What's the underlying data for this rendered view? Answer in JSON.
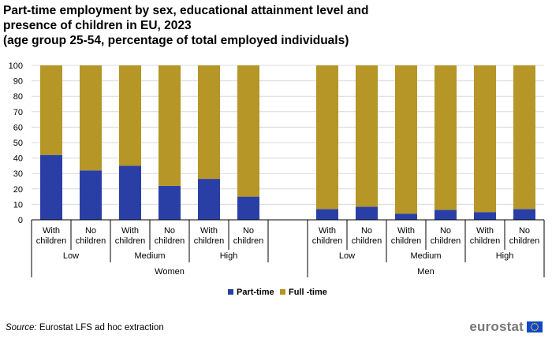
{
  "title_lines": [
    "Part-time employment by sex, educational attainment level and",
    "presence of children in EU, 2023",
    "(age group 25-54, percentage of total employed individuals)"
  ],
  "source": {
    "label": "Source:",
    "text": " Eurostat LFS ad hoc extraction"
  },
  "logo": {
    "text": "eurostat",
    "icon": "eu-flag-icon"
  },
  "colors": {
    "part_time": "#2a3fa6",
    "full_time": "#b59626",
    "grid": "#d9d9d9",
    "axis": "#000000"
  },
  "chart_data": {
    "type": "bar",
    "stacked": true,
    "ylim": [
      0,
      100
    ],
    "yticks": [
      0,
      10,
      20,
      30,
      40,
      50,
      60,
      70,
      80,
      90,
      100
    ],
    "grid": true,
    "legend_position": "bottom",
    "series": [
      {
        "name": "Part-time",
        "color": "#2a3fa6"
      },
      {
        "name": "Full -time",
        "color": "#b59626"
      }
    ],
    "slots": [
      {
        "label": [
          "With",
          "children"
        ],
        "part": 42,
        "full": 58
      },
      {
        "label": [
          "No",
          "children"
        ],
        "part": 32,
        "full": 68
      },
      {
        "label": [
          "With",
          "children"
        ],
        "part": 35,
        "full": 65
      },
      {
        "label": [
          "No",
          "children"
        ],
        "part": 22,
        "full": 78
      },
      {
        "label": [
          "With",
          "children"
        ],
        "part": 26.5,
        "full": 73.5
      },
      {
        "label": [
          "No",
          "children"
        ],
        "part": 15,
        "full": 85
      },
      null,
      {
        "label": [
          "With",
          "children"
        ],
        "part": 7,
        "full": 93
      },
      {
        "label": [
          "No",
          "children"
        ],
        "part": 8.5,
        "full": 91.5
      },
      {
        "label": [
          "With",
          "children"
        ],
        "part": 4,
        "full": 96
      },
      {
        "label": [
          "No",
          "children"
        ],
        "part": 6.5,
        "full": 93.5
      },
      {
        "label": [
          "With",
          "children"
        ],
        "part": 5,
        "full": 95
      },
      {
        "label": [
          "No",
          "children"
        ],
        "part": 7,
        "full": 93
      }
    ],
    "education_groups": [
      {
        "label": "Low",
        "start": 0,
        "end": 2
      },
      {
        "label": "Medium",
        "start": 2,
        "end": 4
      },
      {
        "label": "High",
        "start": 4,
        "end": 6
      },
      {
        "label": "Low",
        "start": 7,
        "end": 9
      },
      {
        "label": "Medium",
        "start": 9,
        "end": 11
      },
      {
        "label": "High",
        "start": 11,
        "end": 13
      }
    ],
    "sex_groups": [
      {
        "label": "Women",
        "start": 0,
        "end": 7
      },
      {
        "label": "Men",
        "start": 7,
        "end": 13
      }
    ]
  }
}
